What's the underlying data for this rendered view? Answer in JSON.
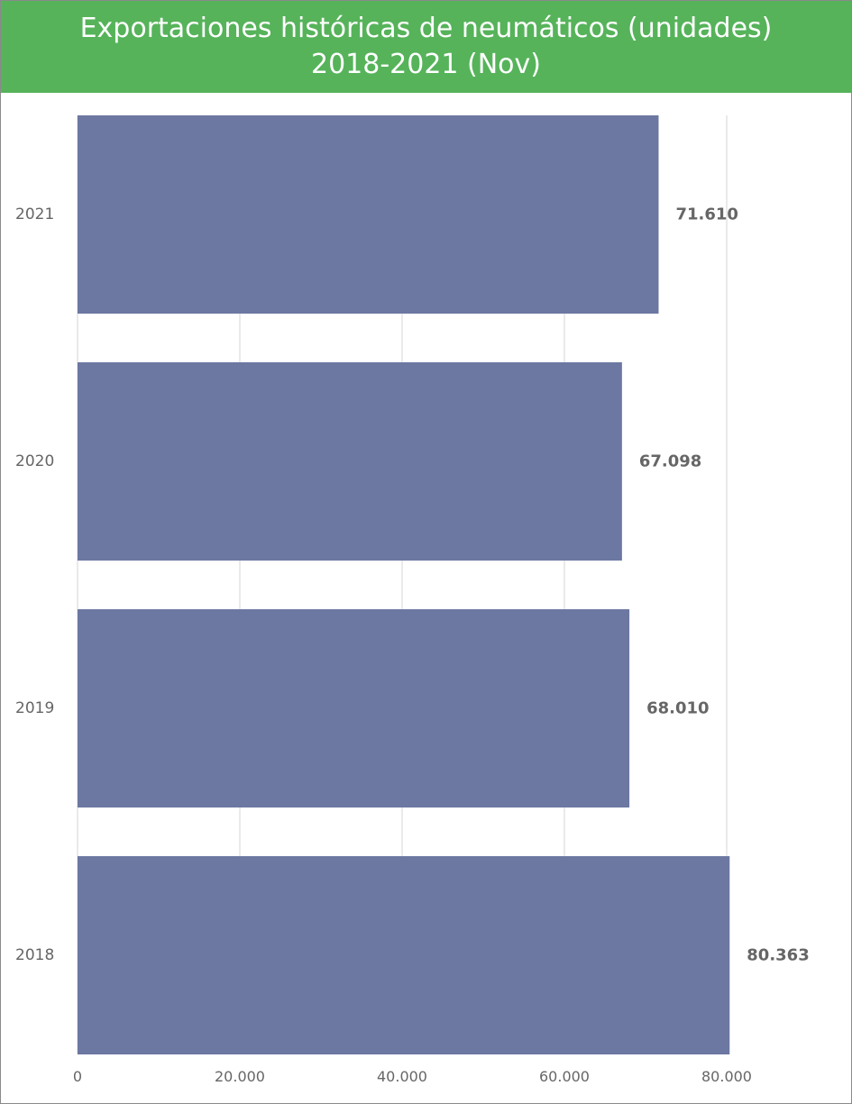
{
  "header": {
    "title_line1": "Exportaciones históricas de neumáticos (unidades)",
    "title_line2": "2018-2021 (Nov)"
  },
  "colors": {
    "title_bg": "#56b35a",
    "bar": "#6c78a2",
    "grid": "#e3e3e3",
    "text": "#666666"
  },
  "chart_data": {
    "type": "bar",
    "orientation": "horizontal",
    "categories": [
      "2021",
      "2020",
      "2019",
      "2018"
    ],
    "values": [
      71610,
      67098,
      68010,
      80363
    ],
    "data_labels": [
      "71.610",
      "67.098",
      "68.010",
      "80.363"
    ],
    "title": "Exportaciones históricas de neumáticos (unidades) 2018-2021 (Nov)",
    "xlim": [
      0,
      80000
    ],
    "x_ticks": [
      0,
      20000,
      40000,
      60000,
      80000
    ],
    "x_tick_labels": [
      "0",
      "20.000",
      "40.000",
      "60.000",
      "80.000"
    ],
    "grid": true,
    "legend": "none"
  }
}
